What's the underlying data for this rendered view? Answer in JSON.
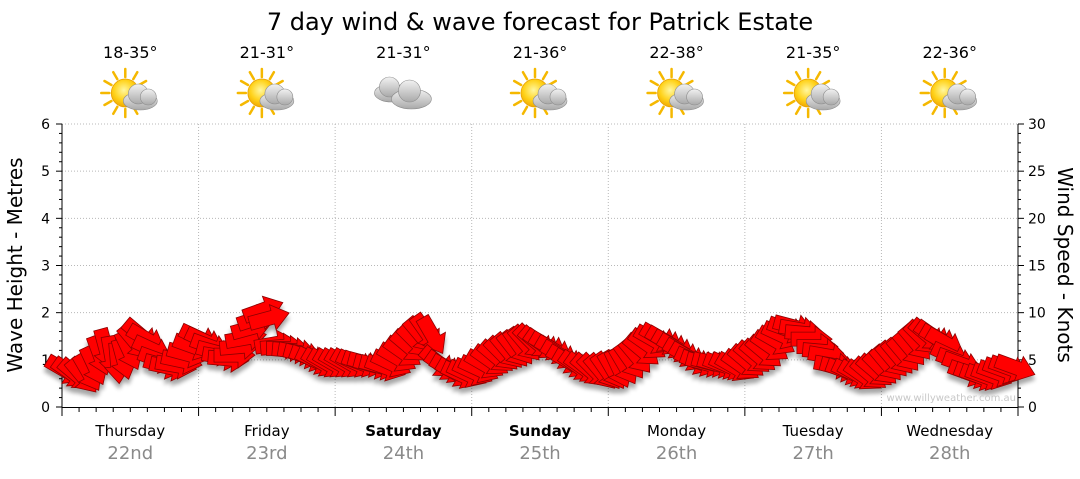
{
  "chart_data": {
    "type": "line",
    "title": "7 day wind & wave forecast for Patrick Estate",
    "ylabel_left": "Wave Height - Metres",
    "ylabel_right": "Wind Speed - Knots",
    "ylim_left": [
      0,
      6
    ],
    "ylim_right": [
      0,
      30
    ],
    "yticks_left": [
      "0",
      "1",
      "2",
      "3",
      "4",
      "5",
      "6"
    ],
    "yticks_right": [
      "0",
      "5",
      "10",
      "15",
      "20",
      "25",
      "30"
    ],
    "grid": true,
    "days": [
      {
        "name": "Thursday",
        "date": "22nd",
        "temp": "18-35°",
        "icon": "partly-sunny-icon",
        "bold": false
      },
      {
        "name": "Friday",
        "date": "23rd",
        "temp": "21-31°",
        "icon": "partly-sunny-icon",
        "bold": false
      },
      {
        "name": "Saturday",
        "date": "24th",
        "temp": "21-31°",
        "icon": "cloudy-icon",
        "bold": true
      },
      {
        "name": "Sunday",
        "date": "25th",
        "temp": "21-36°",
        "icon": "partly-sunny-icon",
        "bold": true
      },
      {
        "name": "Monday",
        "date": "26th",
        "temp": "22-38°",
        "icon": "partly-sunny-icon",
        "bold": false
      },
      {
        "name": "Tuesday",
        "date": "27th",
        "temp": "21-35°",
        "icon": "partly-sunny-icon",
        "bold": false
      },
      {
        "name": "Wednesday",
        "date": "28th",
        "temp": "22-36°",
        "icon": "partly-sunny-icon",
        "bold": false
      }
    ],
    "series": [
      {
        "name": "",
        "color": "#ff0000",
        "stroke": "#8b0000",
        "axis": "right",
        "wind_knots": [
          3.9,
          3.6,
          3.4,
          3.3,
          3.7,
          4.4,
          5.5,
          6.2,
          5.4,
          4.7,
          5.1,
          6.0,
          6.9,
          7.6,
          7.2,
          6.1,
          5.0,
          4.4,
          4.2,
          4.4,
          4.9,
          5.6,
          6.4,
          7.3,
          7.0,
          6.4,
          5.8,
          5.3,
          5.1,
          5.5,
          6.4,
          7.3,
          8.4,
          9.4,
          10.3,
          9.4,
          6.7,
          6.4,
          6.2,
          6.0,
          5.8,
          5.5,
          5.2,
          4.9,
          4.7,
          4.6,
          4.6,
          4.6,
          4.6,
          4.6,
          4.6,
          4.6,
          4.6,
          4.4,
          4.3,
          4.2,
          4.6,
          5.2,
          5.8,
          6.4,
          7.0,
          7.6,
          7.9,
          7.6,
          4.7,
          4.3,
          4.0,
          3.6,
          3.4,
          3.5,
          3.7,
          4.0,
          4.5,
          4.9,
          5.3,
          5.6,
          5.9,
          6.1,
          6.4,
          6.7,
          6.9,
          6.8,
          6.6,
          6.4,
          6.0,
          5.5,
          5.0,
          4.6,
          4.3,
          4.1,
          3.9,
          3.8,
          3.7,
          3.8,
          3.9,
          4.1,
          4.4,
          4.9,
          5.4,
          6.0,
          6.6,
          7.1,
          7.3,
          7.0,
          6.6,
          6.2,
          5.7,
          5.3,
          4.9,
          4.7,
          4.6,
          4.6,
          4.5,
          4.4,
          4.3,
          4.2,
          4.4,
          4.8,
          5.2,
          5.4,
          5.8,
          6.4,
          7.0,
          7.6,
          8.2,
          8.5,
          8.2,
          7.8,
          7.2,
          6.4,
          5.9,
          5.4,
          4.4,
          4.1,
          3.8,
          3.6,
          3.4,
          3.3,
          3.5,
          3.8,
          4.1,
          4.6,
          5.0,
          5.3,
          5.6,
          6.2,
          6.8,
          7.3,
          7.6,
          7.5,
          7.2,
          6.8,
          5.4,
          4.9,
          4.5,
          3.6,
          3.4,
          3.2,
          3.2,
          3.3,
          3.6,
          3.9,
          4.1,
          4.2
        ],
        "wind_dir_deg": [
          300,
          305,
          310,
          320,
          330,
          335,
          340,
          345,
          350,
          355,
          345,
          335,
          320,
          310,
          300,
          295,
          290,
          285,
          282,
          280,
          282,
          285,
          290,
          295,
          295,
          290,
          285,
          280,
          275,
          270,
          265,
          260,
          255,
          252,
          250,
          255,
          260,
          265,
          270,
          275,
          280,
          285,
          290,
          295,
          300,
          300,
          300,
          300,
          300,
          300,
          295,
          290,
          285,
          285,
          285,
          290,
          295,
          300,
          305,
          310,
          315,
          320,
          325,
          330,
          310,
          305,
          300,
          300,
          295,
          295,
          295,
          295,
          300,
          305,
          310,
          315,
          320,
          322,
          325,
          320,
          315,
          310,
          305,
          300,
          300,
          300,
          300,
          300,
          305,
          305,
          310,
          315,
          320,
          325,
          330,
          335,
          330,
          325,
          320,
          310,
          305,
          300,
          300,
          300,
          300,
          300,
          300,
          300,
          295,
          290,
          285,
          285,
          285,
          290,
          295,
          300,
          305,
          310,
          310,
          310,
          310,
          305,
          300,
          295,
          290,
          285,
          280,
          275,
          270,
          270,
          275,
          280,
          280,
          285,
          290,
          295,
          300,
          305,
          310,
          310,
          315,
          320,
          320,
          320,
          320,
          320,
          320,
          315,
          310,
          305,
          300,
          300,
          295,
          290,
          290,
          290,
          290,
          290,
          290,
          290,
          290,
          290,
          290,
          290
        ]
      }
    ],
    "watermark": "www.willyweather.com.au"
  }
}
